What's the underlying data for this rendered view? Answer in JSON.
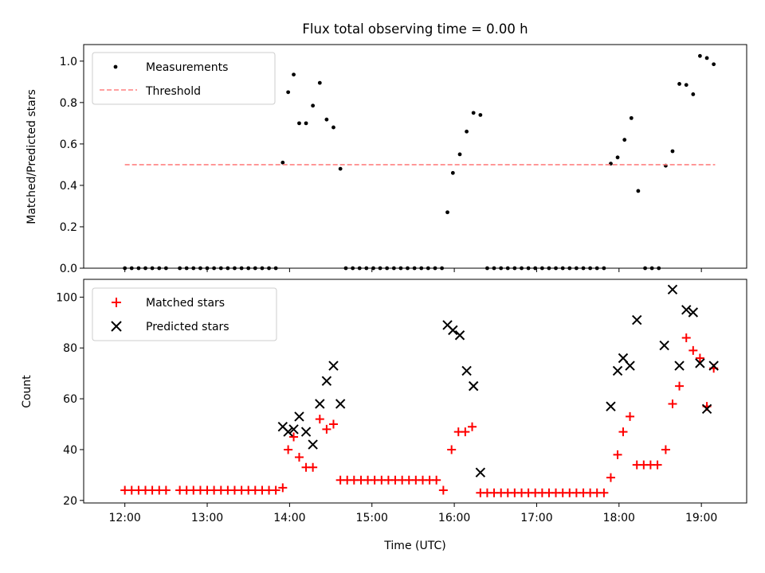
{
  "chart_data": [
    {
      "type": "scatter",
      "title": "Flux total observing time = 0.00 h",
      "xlabel": "",
      "ylabel": "Matched/Predicted stars",
      "xlim": [
        11.5,
        19.55
      ],
      "ylim": [
        0.0,
        1.08
      ],
      "yticks": [
        0.0,
        0.2,
        0.4,
        0.6,
        0.8,
        1.0
      ],
      "ytick_labels": [
        "0.0",
        "0.2",
        "0.4",
        "0.6",
        "0.8",
        "1.0"
      ],
      "xticks": [
        12,
        13,
        14,
        15,
        16,
        17,
        18,
        19
      ],
      "legend": {
        "position": "upper-left",
        "entries": [
          "Measurements",
          "Threshold"
        ]
      },
      "series": [
        {
          "name": "Measurements",
          "marker": "point",
          "color": "#000000",
          "points": [
            [
              12.0,
              0
            ],
            [
              12.083,
              0
            ],
            [
              12.167,
              0
            ],
            [
              12.25,
              0
            ],
            [
              12.333,
              0
            ],
            [
              12.417,
              0
            ],
            [
              12.5,
              0
            ],
            [
              12.667,
              0
            ],
            [
              12.75,
              0
            ],
            [
              12.833,
              0
            ],
            [
              12.917,
              0
            ],
            [
              13.0,
              0
            ],
            [
              13.083,
              0
            ],
            [
              13.167,
              0
            ],
            [
              13.25,
              0
            ],
            [
              13.333,
              0
            ],
            [
              13.417,
              0
            ],
            [
              13.5,
              0
            ],
            [
              13.583,
              0
            ],
            [
              13.667,
              0
            ],
            [
              13.75,
              0
            ],
            [
              13.833,
              0
            ],
            [
              13.917,
              0.51
            ],
            [
              13.983,
              0.85
            ],
            [
              14.05,
              0.935
            ],
            [
              14.117,
              0.7
            ],
            [
              14.2,
              0.7
            ],
            [
              14.283,
              0.785
            ],
            [
              14.367,
              0.895
            ],
            [
              14.45,
              0.718
            ],
            [
              14.533,
              0.68
            ],
            [
              14.617,
              0.48
            ],
            [
              14.683,
              0
            ],
            [
              14.767,
              0
            ],
            [
              14.85,
              0
            ],
            [
              14.933,
              0
            ],
            [
              15.017,
              0
            ],
            [
              15.1,
              0
            ],
            [
              15.183,
              0
            ],
            [
              15.267,
              0
            ],
            [
              15.35,
              0
            ],
            [
              15.433,
              0
            ],
            [
              15.517,
              0
            ],
            [
              15.6,
              0
            ],
            [
              15.683,
              0
            ],
            [
              15.767,
              0
            ],
            [
              15.85,
              0
            ],
            [
              15.917,
              0.27
            ],
            [
              15.983,
              0.46
            ],
            [
              16.067,
              0.55
            ],
            [
              16.15,
              0.66
            ],
            [
              16.233,
              0.75
            ],
            [
              16.317,
              0.74
            ],
            [
              16.4,
              0
            ],
            [
              16.483,
              0
            ],
            [
              16.567,
              0
            ],
            [
              16.65,
              0
            ],
            [
              16.733,
              0
            ],
            [
              16.817,
              0
            ],
            [
              16.9,
              0
            ],
            [
              16.983,
              0
            ],
            [
              17.067,
              0
            ],
            [
              17.15,
              0
            ],
            [
              17.233,
              0
            ],
            [
              17.317,
              0
            ],
            [
              17.4,
              0
            ],
            [
              17.483,
              0
            ],
            [
              17.567,
              0
            ],
            [
              17.65,
              0
            ],
            [
              17.733,
              0
            ],
            [
              17.817,
              0
            ],
            [
              17.9,
              0.505
            ],
            [
              17.983,
              0.535
            ],
            [
              18.067,
              0.62
            ],
            [
              18.15,
              0.725
            ],
            [
              18.233,
              0.373
            ],
            [
              18.317,
              0
            ],
            [
              18.4,
              0
            ],
            [
              18.483,
              0
            ],
            [
              18.567,
              0.495
            ],
            [
              18.65,
              0.565
            ],
            [
              18.733,
              0.89
            ],
            [
              18.817,
              0.885
            ],
            [
              18.9,
              0.84
            ],
            [
              18.983,
              1.025
            ],
            [
              19.067,
              1.015
            ],
            [
              19.15,
              0.985
            ]
          ]
        },
        {
          "name": "Threshold",
          "linestyle": "dashed",
          "color": "#ff8080",
          "x": [
            12.0,
            19.167
          ],
          "y": [
            0.5,
            0.5
          ]
        }
      ]
    },
    {
      "type": "scatter",
      "title": "",
      "xlabel": "Time (UTC)",
      "ylabel": "Count",
      "xlim": [
        11.5,
        19.55
      ],
      "ylim": [
        19,
        107
      ],
      "yticks": [
        20,
        40,
        60,
        80,
        100
      ],
      "ytick_labels": [
        "20",
        "40",
        "60",
        "80",
        "100"
      ],
      "xticks": [
        12,
        13,
        14,
        15,
        16,
        17,
        18,
        19
      ],
      "xtick_labels": [
        "12:00",
        "13:00",
        "14:00",
        "15:00",
        "16:00",
        "17:00",
        "18:00",
        "19:00"
      ],
      "legend": {
        "position": "upper-left",
        "entries": [
          "Matched stars",
          "Predicted stars"
        ]
      },
      "series": [
        {
          "name": "Matched stars",
          "marker": "plus",
          "color": "#ff0000",
          "points": [
            [
              12.0,
              24
            ],
            [
              12.083,
              24
            ],
            [
              12.167,
              24
            ],
            [
              12.25,
              24
            ],
            [
              12.333,
              24
            ],
            [
              12.417,
              24
            ],
            [
              12.5,
              24
            ],
            [
              12.667,
              24
            ],
            [
              12.75,
              24
            ],
            [
              12.833,
              24
            ],
            [
              12.917,
              24
            ],
            [
              13.0,
              24
            ],
            [
              13.083,
              24
            ],
            [
              13.167,
              24
            ],
            [
              13.25,
              24
            ],
            [
              13.333,
              24
            ],
            [
              13.417,
              24
            ],
            [
              13.5,
              24
            ],
            [
              13.583,
              24
            ],
            [
              13.667,
              24
            ],
            [
              13.75,
              24
            ],
            [
              13.833,
              24
            ],
            [
              13.917,
              25
            ],
            [
              13.983,
              40
            ],
            [
              14.05,
              45
            ],
            [
              14.117,
              37
            ],
            [
              14.2,
              33
            ],
            [
              14.283,
              33
            ],
            [
              14.367,
              52
            ],
            [
              14.45,
              48
            ],
            [
              14.533,
              50
            ],
            [
              14.617,
              28
            ],
            [
              14.7,
              28
            ],
            [
              14.783,
              28
            ],
            [
              14.867,
              28
            ],
            [
              14.95,
              28
            ],
            [
              15.033,
              28
            ],
            [
              15.117,
              28
            ],
            [
              15.2,
              28
            ],
            [
              15.283,
              28
            ],
            [
              15.367,
              28
            ],
            [
              15.45,
              28
            ],
            [
              15.533,
              28
            ],
            [
              15.617,
              28
            ],
            [
              15.7,
              28
            ],
            [
              15.783,
              28
            ],
            [
              15.867,
              24
            ],
            [
              15.967,
              40
            ],
            [
              16.05,
              47
            ],
            [
              16.133,
              47
            ],
            [
              16.217,
              49
            ],
            [
              16.317,
              23
            ],
            [
              16.4,
              23
            ],
            [
              16.483,
              23
            ],
            [
              16.567,
              23
            ],
            [
              16.65,
              23
            ],
            [
              16.733,
              23
            ],
            [
              16.817,
              23
            ],
            [
              16.9,
              23
            ],
            [
              16.983,
              23
            ],
            [
              17.067,
              23
            ],
            [
              17.15,
              23
            ],
            [
              17.233,
              23
            ],
            [
              17.317,
              23
            ],
            [
              17.4,
              23
            ],
            [
              17.483,
              23
            ],
            [
              17.567,
              23
            ],
            [
              17.65,
              23
            ],
            [
              17.733,
              23
            ],
            [
              17.817,
              23
            ],
            [
              17.9,
              29
            ],
            [
              17.983,
              38
            ],
            [
              18.05,
              47
            ],
            [
              18.133,
              53
            ],
            [
              18.217,
              34
            ],
            [
              18.3,
              34
            ],
            [
              18.383,
              34
            ],
            [
              18.467,
              34
            ],
            [
              18.567,
              40
            ],
            [
              18.65,
              58
            ],
            [
              18.733,
              65
            ],
            [
              18.817,
              84
            ],
            [
              18.9,
              79
            ],
            [
              18.983,
              76
            ],
            [
              19.067,
              57
            ],
            [
              19.15,
              72
            ]
          ]
        },
        {
          "name": "Predicted stars",
          "marker": "x",
          "color": "#000000",
          "points": [
            [
              13.917,
              49
            ],
            [
              13.983,
              47
            ],
            [
              14.05,
              48
            ],
            [
              14.117,
              53
            ],
            [
              14.2,
              47
            ],
            [
              14.283,
              42
            ],
            [
              14.367,
              58
            ],
            [
              14.45,
              67
            ],
            [
              14.533,
              73
            ],
            [
              14.617,
              58
            ],
            [
              15.917,
              89
            ],
            [
              15.983,
              87
            ],
            [
              16.067,
              85
            ],
            [
              16.15,
              71
            ],
            [
              16.233,
              65
            ],
            [
              16.317,
              31
            ],
            [
              17.9,
              57
            ],
            [
              17.983,
              71
            ],
            [
              18.05,
              76
            ],
            [
              18.133,
              73
            ],
            [
              18.217,
              91
            ],
            [
              18.55,
              81
            ],
            [
              18.65,
              103
            ],
            [
              18.733,
              73
            ],
            [
              18.817,
              95
            ],
            [
              18.9,
              94
            ],
            [
              18.983,
              74
            ],
            [
              19.067,
              56
            ],
            [
              19.15,
              73
            ]
          ]
        }
      ]
    }
  ]
}
